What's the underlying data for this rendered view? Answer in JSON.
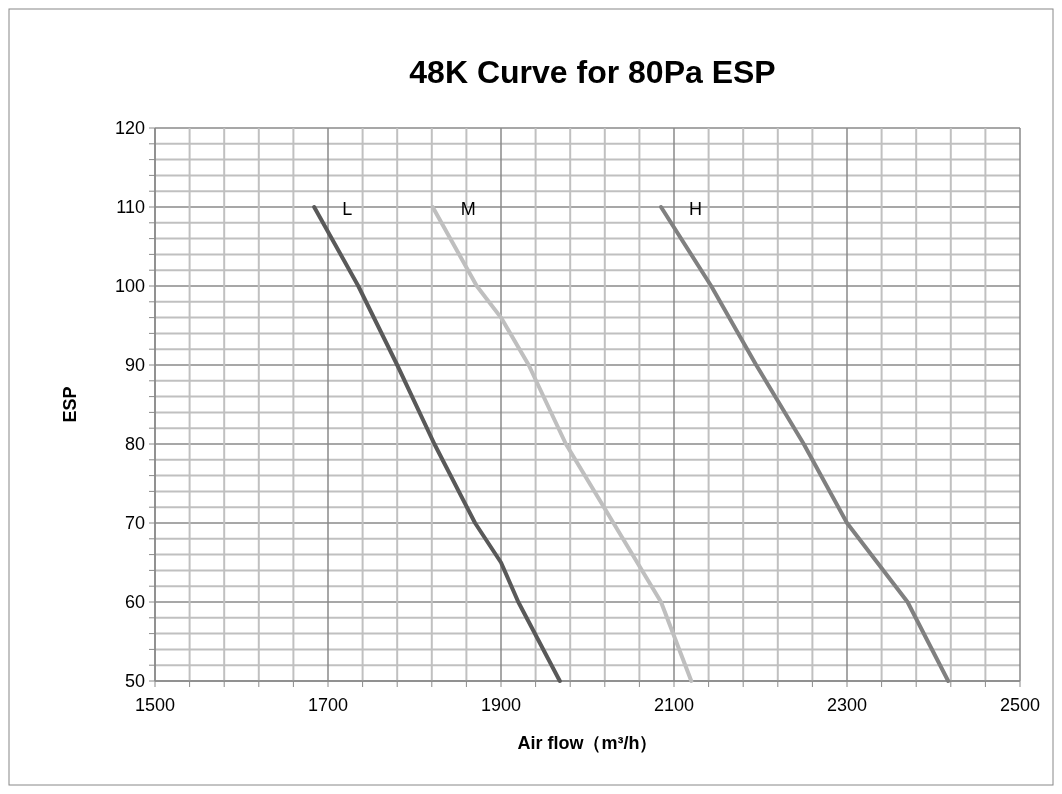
{
  "chart_data": {
    "type": "line",
    "title": "48K Curve for 80Pa ESP",
    "xlabel": "Air flow（m³/h）",
    "ylabel": "ESP",
    "xlim": [
      1500,
      2500
    ],
    "ylim": [
      50,
      120
    ],
    "xticks": [
      1500,
      {
        "value": 1540,
        "label": null
      },
      {
        "value": 1580,
        "label": null
      },
      {
        "value": 1620,
        "label": null
      },
      {
        "value": 1660,
        "label": null
      },
      1700,
      {
        "value": 1740,
        "label": null
      },
      {
        "value": 1780,
        "label": null
      },
      {
        "value": 1820,
        "label": null
      },
      {
        "value": 1860,
        "label": null
      },
      1900,
      {
        "value": 1940,
        "label": null
      },
      {
        "value": 1980,
        "label": null
      },
      {
        "value": 2020,
        "label": null
      },
      {
        "value": 2060,
        "label": null
      },
      2100,
      {
        "value": 2140,
        "label": null
      },
      {
        "value": 2180,
        "label": null
      },
      {
        "value": 2220,
        "label": null
      },
      {
        "value": 2260,
        "label": null
      },
      2300,
      {
        "value": 2340,
        "label": null
      },
      {
        "value": 2380,
        "label": null
      },
      {
        "value": 2420,
        "label": null
      },
      {
        "value": 2460,
        "label": null
      },
      2500
    ],
    "yticks": [
      50,
      {
        "value": 52,
        "label": null
      },
      {
        "value": 54,
        "label": null
      },
      {
        "value": 56,
        "label": null
      },
      {
        "value": 58,
        "label": null
      },
      60,
      {
        "value": 62,
        "label": null
      },
      {
        "value": 64,
        "label": null
      },
      {
        "value": 66,
        "label": null
      },
      {
        "value": 68,
        "label": null
      },
      70,
      {
        "value": 72,
        "label": null
      },
      {
        "value": 74,
        "label": null
      },
      {
        "value": 76,
        "label": null
      },
      {
        "value": 78,
        "label": null
      },
      80,
      {
        "value": 82,
        "label": null
      },
      {
        "value": 84,
        "label": null
      },
      {
        "value": 86,
        "label": null
      },
      {
        "value": 88,
        "label": null
      },
      90,
      {
        "value": 92,
        "label": null
      },
      {
        "value": 94,
        "label": null
      },
      {
        "value": 96,
        "label": null
      },
      {
        "value": 98,
        "label": null
      },
      100,
      {
        "value": 102,
        "label": null
      },
      {
        "value": 104,
        "label": null
      },
      {
        "value": 106,
        "label": null
      },
      {
        "value": 108,
        "label": null
      },
      110,
      {
        "value": 112,
        "label": null
      },
      {
        "value": 114,
        "label": null
      },
      {
        "value": 116,
        "label": null
      },
      {
        "value": 118,
        "label": null
      },
      120
    ],
    "grid": true,
    "legend": false,
    "marker": "none",
    "line_style": "solid",
    "series": [
      {
        "name": "L",
        "color": "#595959",
        "x": [
          1684,
          1735,
          1780,
          1823,
          1870,
          1900,
          1920,
          1968
        ],
        "values": [
          110,
          100,
          90,
          80,
          70,
          65,
          60,
          50
        ]
      },
      {
        "name": "M",
        "color": "#bfbfbf",
        "x": [
          1821,
          1872,
          1900,
          1932,
          1975,
          2030,
          2085,
          2120
        ],
        "values": [
          110,
          100,
          96,
          90,
          80,
          70,
          60,
          50
        ]
      },
      {
        "name": "H",
        "color": "#808080",
        "x": [
          2085,
          2143,
          2195,
          2250,
          2300,
          2335,
          2370,
          2417
        ],
        "values": [
          110,
          100,
          90,
          80,
          70,
          65,
          60,
          50
        ]
      }
    ]
  }
}
